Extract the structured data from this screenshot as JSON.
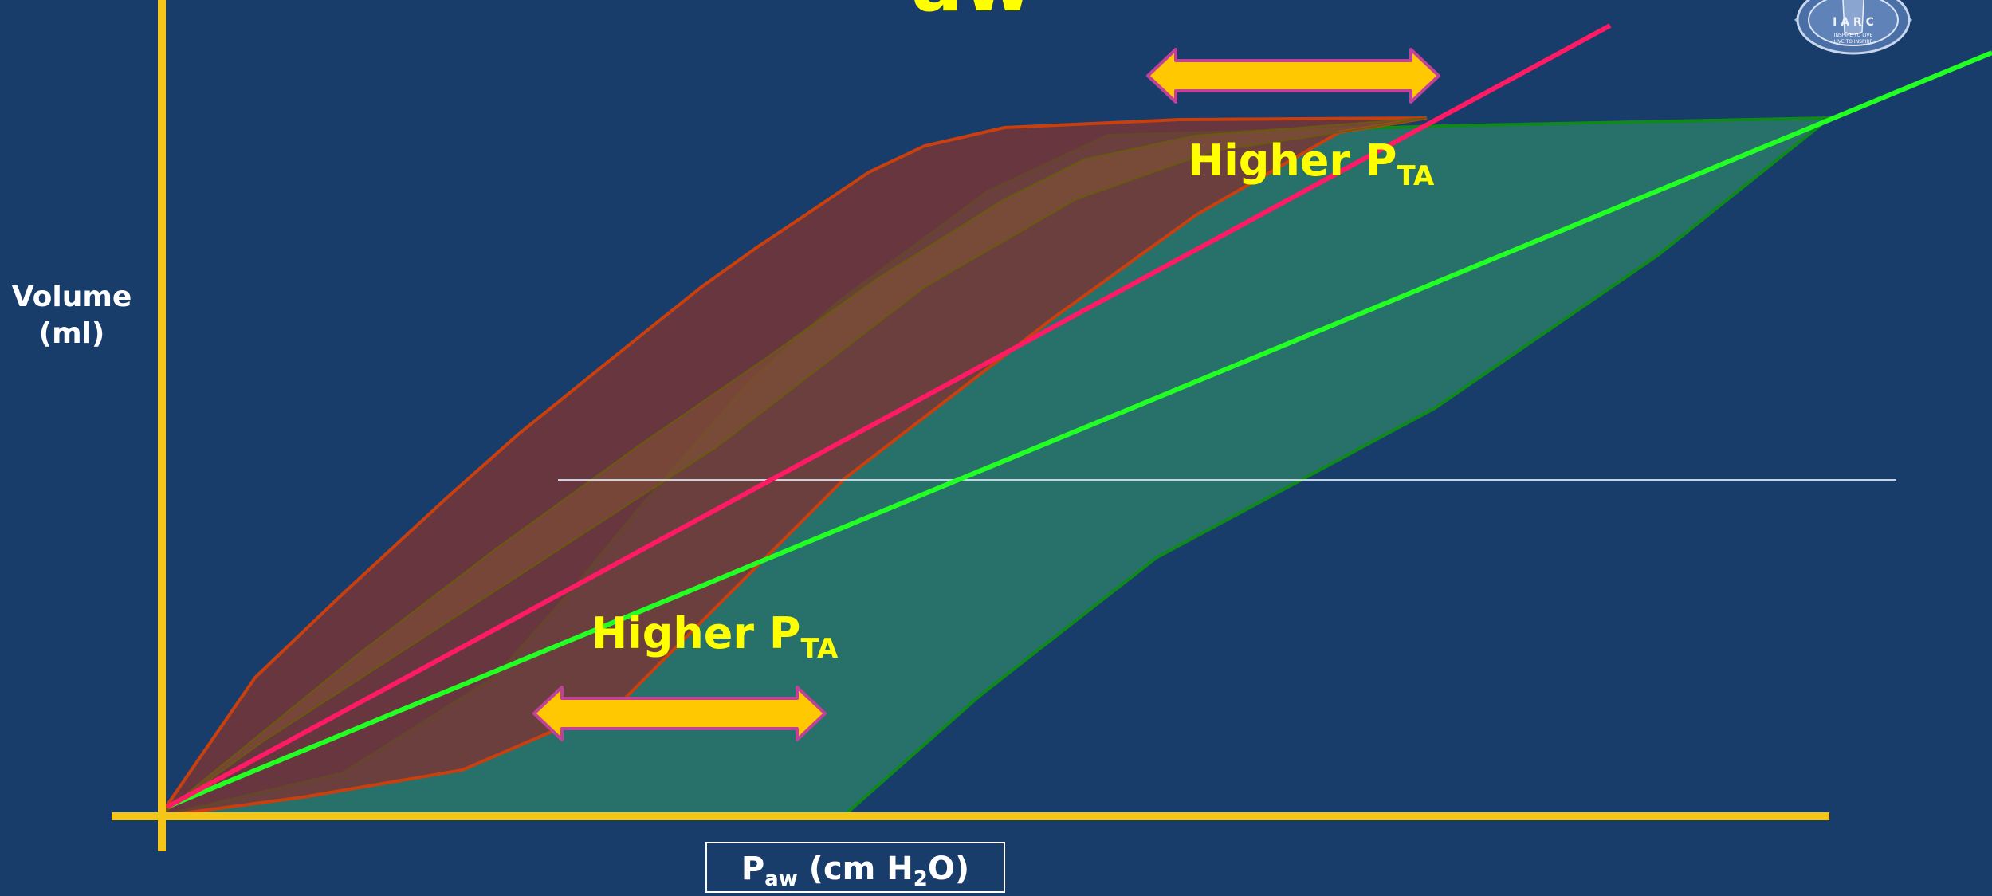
{
  "slide": {
    "title_fragment": "aw",
    "y_axis_label_line1": "Volume",
    "y_axis_label_line2": "(ml)",
    "x_axis_label_main": "P",
    "x_axis_label_sub": "aw",
    "x_axis_label_rest": " (cm H",
    "x_axis_label_sub2": "2",
    "x_axis_label_end": "O)",
    "callout_top_main": "Higher P",
    "callout_top_sub": "TA",
    "callout_bottom_main": "Higher P",
    "callout_bottom_sub": "TA",
    "logo_text": "I A R C",
    "logo_motto_line1": "INSPIRE TO LIVE",
    "logo_motto_line2": "LIVE TO INSPIRE"
  },
  "colors": {
    "background": "#193d6b",
    "axis": "#f5c518",
    "red_loop_fill": "#7a3535",
    "red_loop_stroke": "#c9400e",
    "green_loop_fill": "#2a7a6a",
    "green_loop_stroke": "#0f8a1a",
    "pink_line": "#ff1a66",
    "green_line": "#22ff22",
    "arrow_fill": "#ffc800",
    "arrow_stroke": "#c0409a",
    "text_yellow": "#ffff00",
    "text_white": "#ffffff"
  }
}
